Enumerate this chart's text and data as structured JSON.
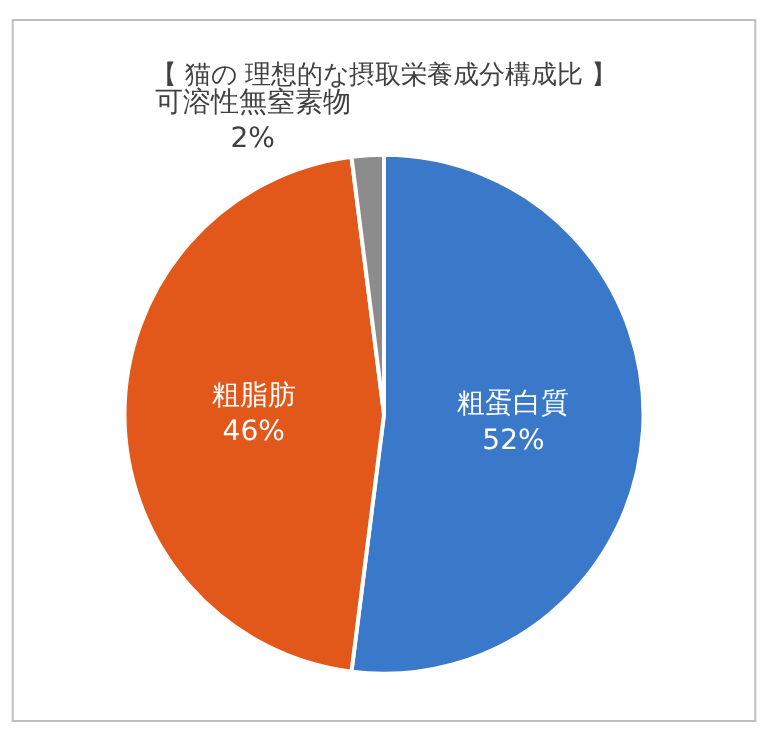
{
  "chart_data": {
    "type": "pie",
    "title": "【 猫の 理想的な摂取栄養成分構成比 】",
    "categories": [
      "粗蛋白質",
      "粗脂肪",
      "可溶性無窒素物"
    ],
    "values": [
      52,
      46,
      2
    ],
    "value_labels": [
      "52%",
      "46%",
      "2%"
    ],
    "colors": [
      "#3a78c9",
      "#e2571a",
      "#8c8c8c"
    ],
    "legend": false
  }
}
